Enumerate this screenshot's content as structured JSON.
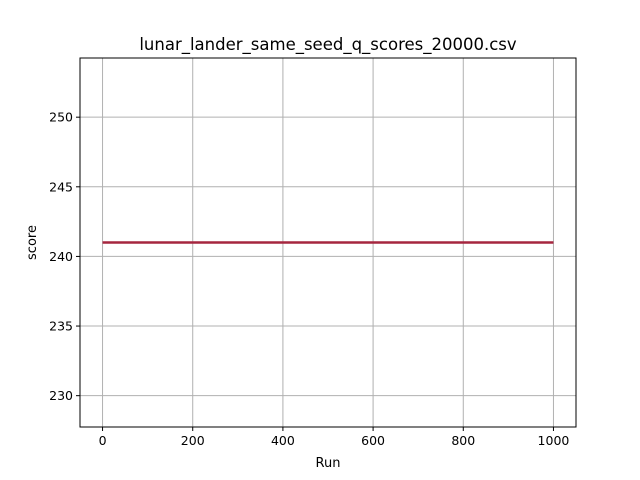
{
  "chart_data": {
    "type": "line",
    "title": "lunar_lander_same_seed_q_scores_20000.csv",
    "xlabel": "Run",
    "ylabel": "score",
    "xlim": [
      -50,
      1050
    ],
    "ylim": [
      227.75,
      254.25
    ],
    "xticks": [
      0,
      200,
      400,
      600,
      800,
      1000
    ],
    "xtick_labels": [
      "0",
      "200",
      "400",
      "600",
      "800",
      "1000"
    ],
    "yticks": [
      230,
      235,
      240,
      245,
      250
    ],
    "ytick_labels": [
      "230",
      "235",
      "240",
      "245",
      "250"
    ],
    "grid": true,
    "series": [
      {
        "color": "#a5263f",
        "x": [
          0,
          1000
        ],
        "y": [
          241,
          241
        ]
      }
    ]
  }
}
